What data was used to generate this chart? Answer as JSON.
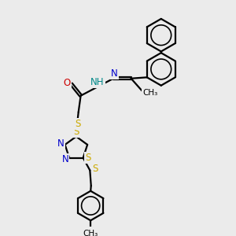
{
  "bg_color": "#ebebeb",
  "atom_colors": {
    "C": "#000000",
    "N": "#0000cc",
    "O": "#cc0000",
    "S": "#ccaa00",
    "H": "#000000",
    "NH": "#008888"
  },
  "bond_color": "#000000",
  "bond_width": 1.6,
  "dbo": 0.055,
  "figsize": [
    3.0,
    3.0
  ],
  "dpi": 100
}
